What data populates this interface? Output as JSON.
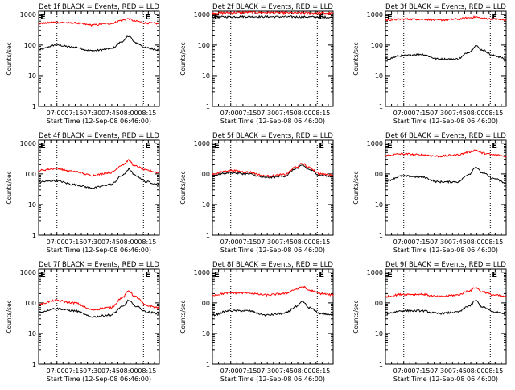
{
  "window_title": "",
  "chart_data": [
    {
      "type": "line",
      "title": "Det 1f BLACK = Events, RED = LLD",
      "xlabel": "Start Time (12-Sep-08 06:46:00)",
      "ylabel": "Counts/sec",
      "yscale": "log",
      "ylim": [
        1,
        1000
      ],
      "xlim": [
        "06:46",
        "08:25"
      ],
      "x_ticks": [
        "07:00",
        "07:15",
        "07:30",
        "07:45",
        "08:00",
        "08:15"
      ],
      "y_ticks": [
        "1",
        "10",
        "100",
        "1000"
      ],
      "vlines": [
        "07:01",
        "08:12"
      ],
      "marker_label": "E",
      "series": [
        {
          "name": "Events",
          "color": "#000000",
          "x": [
            "06:46",
            "07:00",
            "07:15",
            "07:30",
            "07:45",
            "07:55",
            "08:00",
            "08:05",
            "08:15",
            "08:25"
          ],
          "values": [
            70,
            100,
            85,
            65,
            75,
            130,
            200,
            120,
            80,
            70
          ]
        },
        {
          "name": "LLD",
          "color": "#ff0000",
          "x": [
            "06:46",
            "07:00",
            "07:15",
            "07:30",
            "07:45",
            "07:55",
            "08:00",
            "08:05",
            "08:15",
            "08:25"
          ],
          "values": [
            500,
            550,
            520,
            450,
            500,
            650,
            720,
            600,
            520,
            500
          ]
        }
      ]
    },
    {
      "type": "line",
      "title": "Det 2f BLACK = Events, RED = LLD",
      "xlabel": "Start Time (12-Sep-08 06:46:00)",
      "ylabel": "Counts/sec",
      "yscale": "log",
      "ylim": [
        1,
        1000
      ],
      "xlim": [
        "06:46",
        "08:25"
      ],
      "x_ticks": [
        "07:00",
        "07:15",
        "07:30",
        "07:45",
        "08:00",
        "08:15"
      ],
      "y_ticks": [
        "1",
        "10",
        "100",
        "1000"
      ],
      "vlines": [
        "07:01",
        "08:12"
      ],
      "marker_label": "E",
      "series": [
        {
          "name": "Events",
          "color": "#000000",
          "x": [
            "06:46",
            "07:15",
            "07:45",
            "08:15",
            "08:25"
          ],
          "values": [
            820,
            840,
            830,
            820,
            800
          ]
        },
        {
          "name": "LLD",
          "color": "#ff0000",
          "x": [
            "06:46",
            "07:15",
            "07:45",
            "08:15",
            "08:25"
          ],
          "values": [
            1100,
            1150,
            1120,
            1100,
            1080
          ]
        }
      ]
    },
    {
      "type": "line",
      "title": "Det 3f BLACK = Events, RED = LLD",
      "xlabel": "Start Time (12-Sep-08 06:46:00)",
      "ylabel": "Counts/sec",
      "yscale": "log",
      "ylim": [
        1,
        1000
      ],
      "xlim": [
        "06:46",
        "08:25"
      ],
      "x_ticks": [
        "07:00",
        "07:15",
        "07:30",
        "07:45",
        "08:00",
        "08:15"
      ],
      "y_ticks": [
        "1",
        "10",
        "100",
        "1000"
      ],
      "vlines": [
        "07:01",
        "08:12"
      ],
      "marker_label": "E",
      "series": [
        {
          "name": "Events",
          "color": "#000000",
          "x": [
            "06:46",
            "07:00",
            "07:15",
            "07:30",
            "07:45",
            "07:55",
            "08:00",
            "08:05",
            "08:15",
            "08:25"
          ],
          "values": [
            35,
            45,
            50,
            35,
            35,
            60,
            95,
            70,
            45,
            35
          ]
        },
        {
          "name": "LLD",
          "color": "#ff0000",
          "x": [
            "06:46",
            "07:00",
            "07:15",
            "07:30",
            "07:45",
            "07:55",
            "08:00",
            "08:05",
            "08:15",
            "08:25"
          ],
          "values": [
            650,
            700,
            700,
            650,
            700,
            780,
            820,
            750,
            700,
            650
          ]
        }
      ]
    },
    {
      "type": "line",
      "title": "Det 4f BLACK = Events, RED = LLD",
      "xlabel": "Start Time (12-Sep-08 06:46:00)",
      "ylabel": "Counts/sec",
      "yscale": "log",
      "ylim": [
        1,
        1000
      ],
      "xlim": [
        "06:46",
        "08:25"
      ],
      "x_ticks": [
        "07:00",
        "07:15",
        "07:30",
        "07:45",
        "08:00",
        "08:15"
      ],
      "y_ticks": [
        "1",
        "10",
        "100",
        "1000"
      ],
      "vlines": [
        "07:01",
        "08:12"
      ],
      "marker_label": "E",
      "series": [
        {
          "name": "Events",
          "color": "#000000",
          "x": [
            "06:46",
            "07:00",
            "07:15",
            "07:30",
            "07:45",
            "07:55",
            "08:00",
            "08:05",
            "08:15",
            "08:25"
          ],
          "values": [
            55,
            60,
            45,
            35,
            45,
            90,
            140,
            90,
            55,
            45
          ]
        },
        {
          "name": "LLD",
          "color": "#ff0000",
          "x": [
            "06:46",
            "07:00",
            "07:15",
            "07:30",
            "07:45",
            "07:55",
            "08:00",
            "08:05",
            "08:15",
            "08:25"
          ],
          "values": [
            130,
            150,
            120,
            90,
            110,
            200,
            280,
            180,
            130,
            110
          ]
        }
      ]
    },
    {
      "type": "line",
      "title": "Det 5f BLACK = Events, RED = LLD",
      "xlabel": "Start Time (12-Sep-08 06:46:00)",
      "ylabel": "Counts/sec",
      "yscale": "log",
      "ylim": [
        1,
        1000
      ],
      "xlim": [
        "06:46",
        "08:25"
      ],
      "x_ticks": [
        "07:00",
        "07:15",
        "07:30",
        "07:45",
        "08:00",
        "08:15"
      ],
      "y_ticks": [
        "1",
        "10",
        "100",
        "1000"
      ],
      "vlines": [
        "07:01",
        "08:12"
      ],
      "marker_label": "E",
      "series": [
        {
          "name": "Events",
          "color": "#000000",
          "x": [
            "06:46",
            "07:00",
            "07:15",
            "07:30",
            "07:45",
            "07:55",
            "08:00",
            "08:05",
            "08:15",
            "08:25"
          ],
          "values": [
            90,
            110,
            100,
            75,
            85,
            150,
            190,
            140,
            90,
            80
          ]
        },
        {
          "name": "LLD",
          "color": "#ff0000",
          "x": [
            "06:46",
            "07:00",
            "07:15",
            "07:30",
            "07:45",
            "07:55",
            "08:00",
            "08:05",
            "08:15",
            "08:25"
          ],
          "values": [
            100,
            130,
            115,
            85,
            95,
            170,
            220,
            160,
            100,
            90
          ]
        }
      ]
    },
    {
      "type": "line",
      "title": "Det 6f BLACK = Events, RED = LLD",
      "xlabel": "Start Time (12-Sep-08 06:46:00)",
      "ylabel": "Counts/sec",
      "yscale": "log",
      "ylim": [
        1,
        1000
      ],
      "xlim": [
        "06:46",
        "08:25"
      ],
      "x_ticks": [
        "07:00",
        "07:15",
        "07:30",
        "07:45",
        "08:00",
        "08:15"
      ],
      "y_ticks": [
        "1",
        "10",
        "100",
        "1000"
      ],
      "vlines": [
        "07:01",
        "08:12"
      ],
      "marker_label": "E",
      "series": [
        {
          "name": "Events",
          "color": "#000000",
          "x": [
            "06:46",
            "07:00",
            "07:15",
            "07:30",
            "07:45",
            "07:55",
            "08:00",
            "08:05",
            "08:15",
            "08:25"
          ],
          "values": [
            60,
            85,
            80,
            55,
            55,
            100,
            170,
            110,
            70,
            50
          ]
        },
        {
          "name": "LLD",
          "color": "#ff0000",
          "x": [
            "06:46",
            "07:00",
            "07:15",
            "07:30",
            "07:45",
            "07:55",
            "08:00",
            "08:05",
            "08:15",
            "08:25"
          ],
          "values": [
            400,
            450,
            420,
            380,
            420,
            520,
            600,
            480,
            420,
            380
          ]
        }
      ]
    },
    {
      "type": "line",
      "title": "Det 7f BLACK = Events, RED = LLD",
      "xlabel": "Start Time (12-Sep-08 06:46:00)",
      "ylabel": "Counts/sec",
      "yscale": "log",
      "ylim": [
        1,
        1000
      ],
      "xlim": [
        "06:46",
        "08:25"
      ],
      "x_ticks": [
        "07:00",
        "07:15",
        "07:30",
        "07:45",
        "08:00",
        "08:15"
      ],
      "y_ticks": [
        "1",
        "10",
        "100",
        "1000"
      ],
      "vlines": [
        "07:01",
        "08:12"
      ],
      "marker_label": "E",
      "series": [
        {
          "name": "Events",
          "color": "#000000",
          "x": [
            "06:46",
            "07:00",
            "07:15",
            "07:30",
            "07:45",
            "07:55",
            "08:00",
            "08:05",
            "08:15",
            "08:25"
          ],
          "values": [
            50,
            65,
            55,
            35,
            40,
            75,
            120,
            80,
            50,
            45
          ]
        },
        {
          "name": "LLD",
          "color": "#ff0000",
          "x": [
            "06:46",
            "07:00",
            "07:15",
            "07:30",
            "07:45",
            "07:55",
            "08:00",
            "08:05",
            "08:15",
            "08:25"
          ],
          "values": [
            90,
            120,
            100,
            60,
            70,
            150,
            250,
            160,
            80,
            70
          ]
        }
      ]
    },
    {
      "type": "line",
      "title": "Det 8f BLACK = Events, RED = LLD",
      "xlabel": "Start Time (12-Sep-08 06:46:00)",
      "ylabel": "Counts/sec",
      "yscale": "log",
      "ylim": [
        1,
        1000
      ],
      "xlim": [
        "06:46",
        "08:25"
      ],
      "x_ticks": [
        "07:00",
        "07:15",
        "07:30",
        "07:45",
        "08:00",
        "08:15"
      ],
      "y_ticks": [
        "1",
        "10",
        "100",
        "1000"
      ],
      "vlines": [
        "07:01",
        "08:12"
      ],
      "marker_label": "E",
      "series": [
        {
          "name": "Events",
          "color": "#000000",
          "x": [
            "06:46",
            "07:00",
            "07:15",
            "07:30",
            "07:45",
            "07:55",
            "08:00",
            "08:05",
            "08:15",
            "08:25"
          ],
          "values": [
            40,
            55,
            55,
            40,
            45,
            75,
            110,
            70,
            45,
            40
          ]
        },
        {
          "name": "LLD",
          "color": "#ff0000",
          "x": [
            "06:46",
            "07:00",
            "07:15",
            "07:30",
            "07:45",
            "07:55",
            "08:00",
            "08:05",
            "08:15",
            "08:25"
          ],
          "values": [
            180,
            210,
            210,
            180,
            200,
            280,
            340,
            260,
            200,
            180
          ]
        }
      ]
    },
    {
      "type": "line",
      "title": "Det 9f BLACK = Events, RED = LLD",
      "xlabel": "Start Time (12-Sep-08 06:46:00)",
      "ylabel": "Counts/sec",
      "yscale": "log",
      "ylim": [
        1,
        1000
      ],
      "xlim": [
        "06:46",
        "08:25"
      ],
      "x_ticks": [
        "07:00",
        "07:15",
        "07:30",
        "07:45",
        "08:00",
        "08:15"
      ],
      "y_ticks": [
        "1",
        "10",
        "100",
        "1000"
      ],
      "vlines": [
        "07:01",
        "08:12"
      ],
      "marker_label": "E",
      "series": [
        {
          "name": "Events",
          "color": "#000000",
          "x": [
            "06:46",
            "07:00",
            "07:15",
            "07:30",
            "07:45",
            "07:55",
            "08:00",
            "08:05",
            "08:15",
            "08:25"
          ],
          "values": [
            45,
            55,
            55,
            45,
            50,
            80,
            120,
            75,
            50,
            45
          ]
        },
        {
          "name": "LLD",
          "color": "#ff0000",
          "x": [
            "06:46",
            "07:00",
            "07:15",
            "07:30",
            "07:45",
            "07:55",
            "08:00",
            "08:05",
            "08:15",
            "08:25"
          ],
          "values": [
            160,
            190,
            190,
            160,
            180,
            250,
            320,
            230,
            180,
            160
          ]
        }
      ]
    }
  ]
}
